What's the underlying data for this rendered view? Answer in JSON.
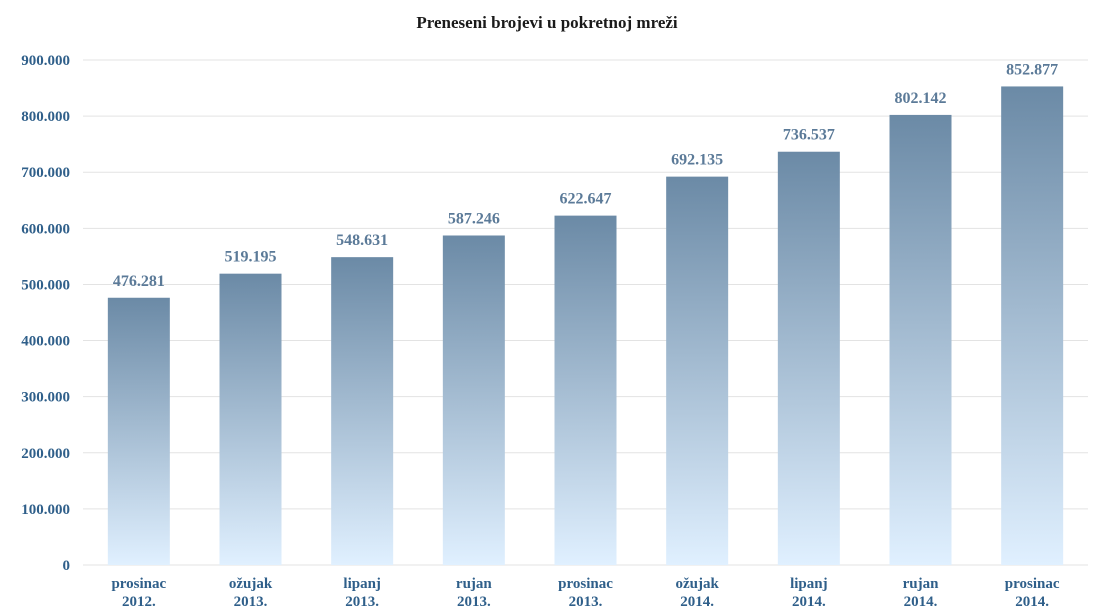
{
  "chart_data": {
    "type": "bar",
    "title": "Preneseni brojevi u pokretnoj mreži",
    "categories": [
      [
        "prosinac",
        "2012."
      ],
      [
        "ožujak",
        "2013."
      ],
      [
        "lipanj",
        "2013."
      ],
      [
        "rujan",
        "2013."
      ],
      [
        "prosinac",
        "2013."
      ],
      [
        "ožujak",
        "2014."
      ],
      [
        "lipanj",
        "2014."
      ],
      [
        "rujan",
        "2014."
      ],
      [
        "prosinac",
        "2014."
      ]
    ],
    "values": [
      476281,
      519195,
      548631,
      587246,
      622647,
      692135,
      736537,
      802142,
      852877
    ],
    "data_labels": [
      "476.281",
      "519.195",
      "548.631",
      "587.246",
      "622.647",
      "692.135",
      "736.537",
      "802.142",
      "852.877"
    ],
    "ylim": [
      0,
      900000
    ],
    "yticks": [
      0,
      100000,
      200000,
      300000,
      400000,
      500000,
      600000,
      700000,
      800000,
      900000
    ],
    "ytick_labels": [
      "0",
      "100.000",
      "200.000",
      "300.000",
      "400.000",
      "500.000",
      "600.000",
      "700.000",
      "800.000",
      "900.000"
    ],
    "grid": true,
    "colors": {
      "bar_top": "#6b8aa6",
      "bar_bottom": "#e0f0ff",
      "axis_text": "#2f5f8a",
      "label_text": "#5b7a98"
    }
  }
}
